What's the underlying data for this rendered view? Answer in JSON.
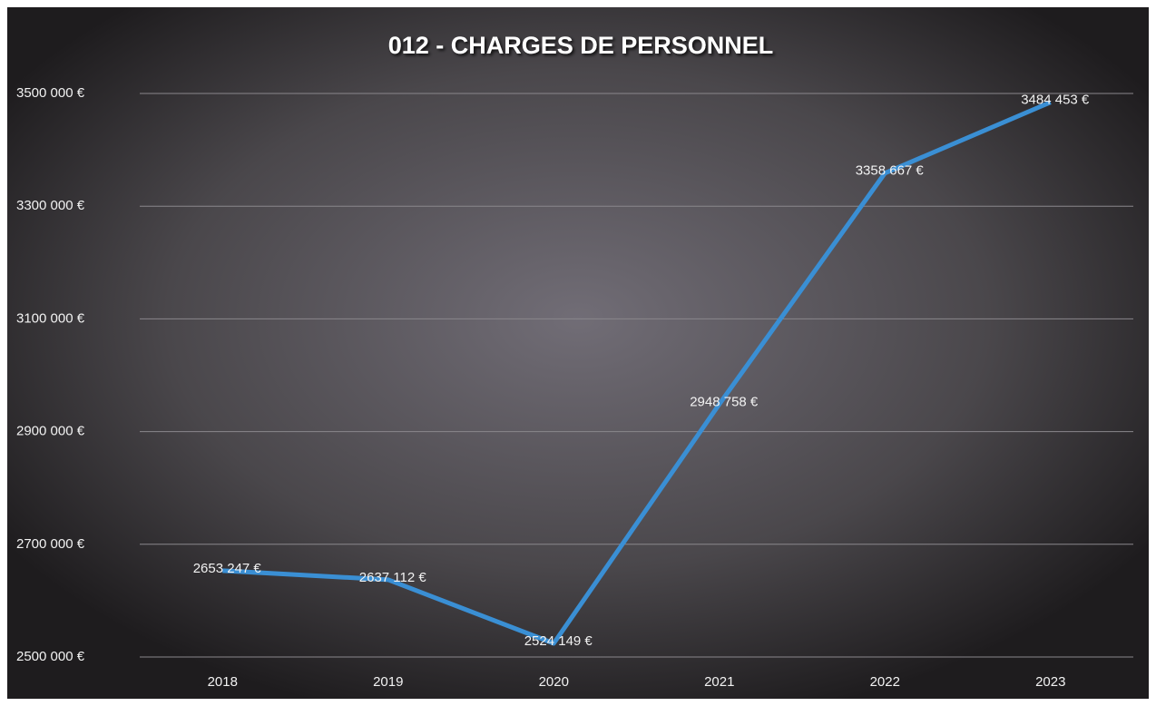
{
  "chart_data": {
    "type": "line",
    "title": "012 - CHARGES DE PERSONNEL",
    "categories": [
      "2018",
      "2019",
      "2020",
      "2021",
      "2022",
      "2023"
    ],
    "series": [
      {
        "name": "012 - CHARGES DE PERSONNEL",
        "color": "#3a8fd4",
        "values": [
          2653247,
          2637112,
          2524149,
          2948758,
          3358667,
          3484453
        ],
        "value_labels": [
          "2653 247 €",
          "2637 112 €",
          "2524 149 €",
          "2948 758 €",
          "3358 667 €",
          "3484 453 €"
        ]
      }
    ],
    "ylim": [
      2500000,
      3500000
    ],
    "yticks": [
      {
        "value": 2500000,
        "label": "2500 000 €"
      },
      {
        "value": 2700000,
        "label": "2700 000 €"
      },
      {
        "value": 2900000,
        "label": "2900 000 €"
      },
      {
        "value": 3100000,
        "label": "3100 000 €"
      },
      {
        "value": 3300000,
        "label": "3300 000 €"
      },
      {
        "value": 3500000,
        "label": "3500 000 €"
      }
    ],
    "grid": true
  }
}
